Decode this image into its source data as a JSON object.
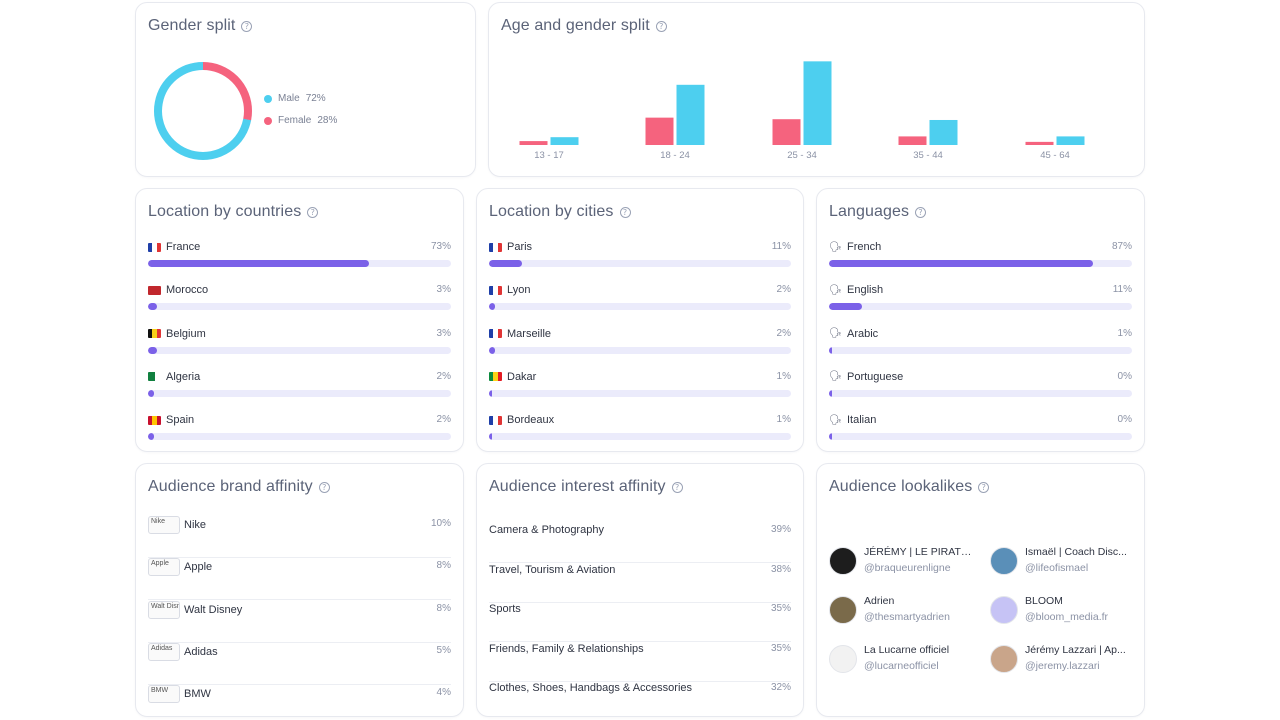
{
  "gender": {
    "title": "Gender split",
    "male_label": "Male",
    "male_pct": "72%",
    "male_value": 72,
    "female_label": "Female",
    "female_pct": "28%",
    "female_value": 28,
    "colors": {
      "male": "#4dcfef",
      "female": "#f5637e"
    }
  },
  "age": {
    "title": "Age and gender split",
    "chart_data": {
      "type": "bar",
      "categories": [
        "13 - 17",
        "18 - 24",
        "25 - 34",
        "35 - 44",
        "45 - 64"
      ],
      "series": [
        {
          "name": "Female",
          "color": "#f5637e",
          "values": [
            0.5,
            3.5,
            3.3,
            1.1,
            0.4
          ]
        },
        {
          "name": "Male",
          "color": "#4dcfef",
          "values": [
            1.0,
            7.7,
            10.7,
            3.2,
            1.1
          ]
        }
      ],
      "ylim": [
        0,
        11
      ]
    }
  },
  "countries": {
    "title": "Location by countries",
    "items": [
      {
        "label": "France",
        "pct": "73%",
        "value": 73,
        "flag": [
          "#1f3fa8",
          "#ffffff",
          "#e03535"
        ]
      },
      {
        "label": "Morocco",
        "pct": "3%",
        "value": 3,
        "flag": [
          "#c1272d"
        ]
      },
      {
        "label": "Belgium",
        "pct": "3%",
        "value": 3,
        "flag": [
          "#111111",
          "#f7d11a",
          "#e03535"
        ]
      },
      {
        "label": "Algeria",
        "pct": "2%",
        "value": 2,
        "flag": [
          "#11803f",
          "#ffffff"
        ]
      },
      {
        "label": "Spain",
        "pct": "2%",
        "value": 2,
        "flag": [
          "#c8102e",
          "#ffc400",
          "#c8102e"
        ]
      }
    ]
  },
  "cities": {
    "title": "Location by cities",
    "items": [
      {
        "label": "Paris",
        "pct": "11%",
        "value": 11,
        "flag": [
          "#1f3fa8",
          "#ffffff",
          "#e03535"
        ]
      },
      {
        "label": "Lyon",
        "pct": "2%",
        "value": 2,
        "flag": [
          "#1f3fa8",
          "#ffffff",
          "#e03535"
        ]
      },
      {
        "label": "Marseille",
        "pct": "2%",
        "value": 2,
        "flag": [
          "#1f3fa8",
          "#ffffff",
          "#e03535"
        ]
      },
      {
        "label": "Dakar",
        "pct": "1%",
        "value": 1,
        "flag": [
          "#0b8a3e",
          "#fcd116",
          "#e31b23"
        ]
      },
      {
        "label": "Bordeaux",
        "pct": "1%",
        "value": 1,
        "flag": [
          "#1f3fa8",
          "#ffffff",
          "#e03535"
        ]
      }
    ]
  },
  "languages": {
    "title": "Languages",
    "icon": "speaking-head-icon",
    "items": [
      {
        "label": "French",
        "pct": "87%",
        "value": 87
      },
      {
        "label": "English",
        "pct": "11%",
        "value": 11
      },
      {
        "label": "Arabic",
        "pct": "1%",
        "value": 1
      },
      {
        "label": "Portuguese",
        "pct": "0%",
        "value": 0
      },
      {
        "label": "Italian",
        "pct": "0%",
        "value": 0
      }
    ]
  },
  "brands": {
    "title": "Audience brand affinity",
    "items": [
      {
        "logo_alt": "Nike",
        "label": "Nike",
        "pct": "10%"
      },
      {
        "logo_alt": "Apple",
        "label": "Apple",
        "pct": "8%"
      },
      {
        "logo_alt": "Walt Disney",
        "label": "Walt Disney",
        "pct": "8%"
      },
      {
        "logo_alt": "Adidas",
        "label": "Adidas",
        "pct": "5%"
      },
      {
        "logo_alt": "BMW",
        "label": "BMW",
        "pct": "4%"
      }
    ]
  },
  "interests": {
    "title": "Audience interest affinity",
    "items": [
      {
        "label": "Camera & Photography",
        "pct": "39%"
      },
      {
        "label": "Travel, Tourism & Aviation",
        "pct": "38%"
      },
      {
        "label": "Sports",
        "pct": "35%"
      },
      {
        "label": "Friends, Family & Relationships",
        "pct": "35%"
      },
      {
        "label": "Clothes, Shoes, Handbags & Accessories",
        "pct": "32%"
      }
    ]
  },
  "lookalikes": {
    "title": "Audience lookalikes",
    "people": [
      {
        "name": "JÉRÉMY | LE PIRATE™",
        "handle": "@braqueurenligne",
        "avatar_color": "#1d1d1d"
      },
      {
        "name": "Ismaël | Coach Disc...",
        "handle": "@lifeofismael",
        "avatar_color": "#5a8fb8"
      },
      {
        "name": "Adrien",
        "handle": "@thesmartyadrien",
        "avatar_color": "#7a6a4a"
      },
      {
        "name": "BLOOM",
        "handle": "@bloom_media.fr",
        "avatar_color": "#c6c3f5"
      },
      {
        "name": "La Lucarne officiel",
        "handle": "@lucarneofficiel",
        "avatar_color": "#f2f2f2"
      },
      {
        "name": "Jérémy Lazzari | Ap...",
        "handle": "@jeremy.lazzari",
        "avatar_color": "#c9a58a"
      }
    ]
  }
}
